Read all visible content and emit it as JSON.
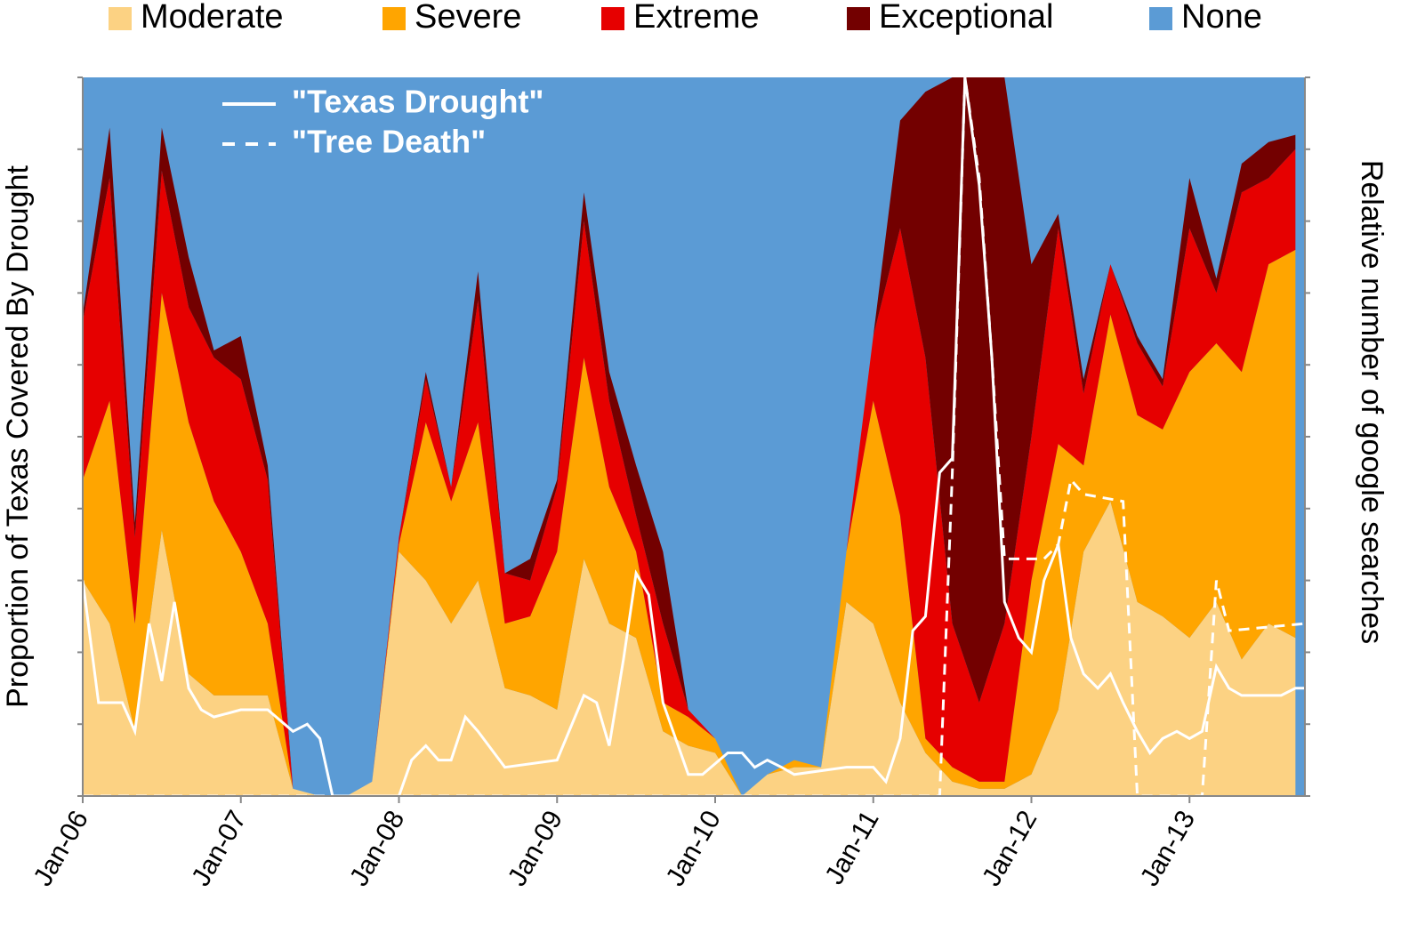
{
  "chart_data": {
    "type": "stacked_area",
    "y_label": "Proportion of Texas Covered By Drought",
    "y2_label": "Relative number of google searches",
    "x": [
      2006.0,
      2006.17,
      2006.33,
      2006.5,
      2006.67,
      2006.83,
      2007.0,
      2007.17,
      2007.33,
      2007.5,
      2007.67,
      2007.83,
      2008.0,
      2008.17,
      2008.33,
      2008.5,
      2008.67,
      2008.83,
      2009.0,
      2009.17,
      2009.33,
      2009.5,
      2009.67,
      2009.83,
      2010.0,
      2010.17,
      2010.33,
      2010.5,
      2010.67,
      2010.83,
      2011.0,
      2011.17,
      2011.33,
      2011.5,
      2011.67,
      2011.83,
      2012.0,
      2012.17,
      2012.33,
      2012.5,
      2012.67,
      2012.83,
      2013.0,
      2013.17,
      2013.33,
      2013.5,
      2013.67
    ],
    "series": [
      {
        "name": "Moderate",
        "color": "#fcd283",
        "values": [
          0.3,
          0.24,
          0.09,
          0.37,
          0.17,
          0.14,
          0.14,
          0.14,
          0.01,
          0,
          0,
          0.02,
          0.34,
          0.3,
          0.24,
          0.3,
          0.15,
          0.14,
          0.12,
          0.33,
          0.24,
          0.22,
          0.09,
          0.07,
          0.06,
          0,
          0.03,
          0.04,
          0.04,
          0.27,
          0.24,
          0.13,
          0.06,
          0.02,
          0.01,
          0.01,
          0.03,
          0.12,
          0.34,
          0.41,
          0.27,
          0.25,
          0.22,
          0.27,
          0.19,
          0.24,
          0.22
        ]
      },
      {
        "name": "Severe",
        "color": "#ffa500",
        "values": [
          0.14,
          0.31,
          0.15,
          0.33,
          0.35,
          0.27,
          0.2,
          0.1,
          0,
          0,
          0,
          0,
          0.01,
          0.22,
          0.17,
          0.22,
          0.09,
          0.11,
          0.22,
          0.28,
          0.19,
          0.12,
          0.04,
          0.04,
          0.02,
          0,
          0,
          0.01,
          0,
          0.07,
          0.31,
          0.26,
          0.02,
          0.02,
          0.01,
          0.01,
          0.27,
          0.37,
          0.12,
          0.26,
          0.26,
          0.26,
          0.37,
          0.36,
          0.4,
          0.5,
          0.54
        ]
      },
      {
        "name": "Extreme",
        "color": "#e60000",
        "values": [
          0.22,
          0.31,
          0.12,
          0.17,
          0.16,
          0.2,
          0.24,
          0.2,
          0,
          0,
          0,
          0,
          0.01,
          0.06,
          0.02,
          0.17,
          0.07,
          0.05,
          0.09,
          0.19,
          0.12,
          0.05,
          0.11,
          0.01,
          0,
          0,
          0,
          0,
          0,
          0,
          0.09,
          0.4,
          0.53,
          0.2,
          0.11,
          0.22,
          0.2,
          0.3,
          0.1,
          0.07,
          0.1,
          0.06,
          0.2,
          0.07,
          0.25,
          0.12,
          0.14
        ]
      },
      {
        "name": "Exceptional",
        "color": "#730000",
        "values": [
          0.01,
          0.07,
          0.02,
          0.06,
          0.07,
          0.01,
          0.06,
          0.02,
          0,
          0,
          0,
          0,
          0,
          0.01,
          0,
          0.04,
          0,
          0.03,
          0.01,
          0.04,
          0.04,
          0.07,
          0.1,
          0,
          0,
          0,
          0,
          0,
          0,
          0,
          0,
          0.15,
          0.37,
          0.76,
          0.87,
          0.76,
          0.24,
          0.02,
          0.02,
          0,
          0.01,
          0.01,
          0.07,
          0.02,
          0.04,
          0.05,
          0.02
        ]
      },
      {
        "name": "None",
        "color": "#5b9bd5"
      }
    ],
    "lines": [
      {
        "name": "\"Texas Drought\"",
        "color": "#ffffff",
        "dash": false,
        "axis": "y2",
        "x": [
          2006.0,
          2006.1,
          2006.25,
          2006.33,
          2006.42,
          2006.5,
          2006.58,
          2006.67,
          2006.75,
          2006.83,
          2007.0,
          2007.17,
          2007.33,
          2007.42,
          2007.5,
          2007.58,
          2008.0,
          2008.08,
          2008.17,
          2008.25,
          2008.33,
          2008.42,
          2008.5,
          2008.67,
          2009.0,
          2009.17,
          2009.25,
          2009.33,
          2009.42,
          2009.5,
          2009.58,
          2009.67,
          2009.83,
          2009.92,
          2010.08,
          2010.17,
          2010.25,
          2010.33,
          2010.42,
          2010.5,
          2010.83,
          2011.0,
          2011.08,
          2011.17,
          2011.25,
          2011.33,
          2011.42,
          2011.5,
          2011.58,
          2011.67,
          2011.75,
          2011.83,
          2011.92,
          2012.0,
          2012.08,
          2012.17,
          2012.25,
          2012.33,
          2012.42,
          2012.5,
          2012.58,
          2012.67,
          2012.75,
          2012.83,
          2012.92,
          2013.0,
          2013.08,
          2013.17,
          2013.25,
          2013.33,
          2013.58,
          2013.67,
          2013.73
        ],
        "values": [
          30,
          13,
          13,
          9,
          24,
          16,
          27,
          15,
          12,
          11,
          12,
          12,
          9,
          10,
          8,
          0,
          0,
          5,
          7,
          5,
          5,
          11,
          9,
          4,
          5,
          14,
          13,
          7,
          19,
          31,
          28,
          13,
          3,
          3,
          6,
          6,
          4,
          5,
          4,
          3,
          4,
          4,
          2,
          8,
          23,
          25,
          45,
          47,
          100,
          85,
          61,
          27,
          22,
          20,
          30,
          35,
          22,
          17,
          15,
          17,
          13,
          9,
          6,
          8,
          9,
          8,
          9,
          18,
          15,
          14,
          14,
          15,
          15
        ]
      },
      {
        "name": "\"Tree Death\"",
        "color": "#ffffff",
        "dash": true,
        "axis": "y2",
        "x": [
          2006.0,
          2011.42,
          2011.5,
          2011.58,
          2011.67,
          2011.75,
          2011.83,
          2012.08,
          2012.17,
          2012.25,
          2012.33,
          2012.58,
          2012.67,
          2013.08,
          2013.17,
          2013.25,
          2013.73
        ],
        "values": [
          0,
          0,
          45,
          100,
          86,
          61,
          33,
          33,
          35,
          44,
          42,
          41,
          0,
          0,
          30,
          23,
          24
        ]
      }
    ],
    "xlim": [
      2006,
      2013.73
    ],
    "xticks": [
      {
        "value": 2006,
        "label": "Jan-06"
      },
      {
        "value": 2007,
        "label": "Jan-07"
      },
      {
        "value": 2008,
        "label": "Jan-08"
      },
      {
        "value": 2009,
        "label": "Jan-09"
      },
      {
        "value": 2010,
        "label": "Jan-10"
      },
      {
        "value": 2011,
        "label": "Jan-11"
      },
      {
        "value": 2012,
        "label": "Jan-12"
      },
      {
        "value": 2013,
        "label": "Jan-13"
      }
    ],
    "ylim": [
      0,
      1
    ],
    "yticks": [
      0,
      0.1,
      0.2,
      0.3,
      0.4,
      0.5,
      0.6,
      0.7,
      0.8,
      0.9,
      1
    ],
    "y2lim": [
      0,
      100
    ],
    "y2ticks": [
      0,
      10,
      20,
      30,
      40,
      50,
      60,
      70,
      80,
      90,
      100
    ]
  }
}
